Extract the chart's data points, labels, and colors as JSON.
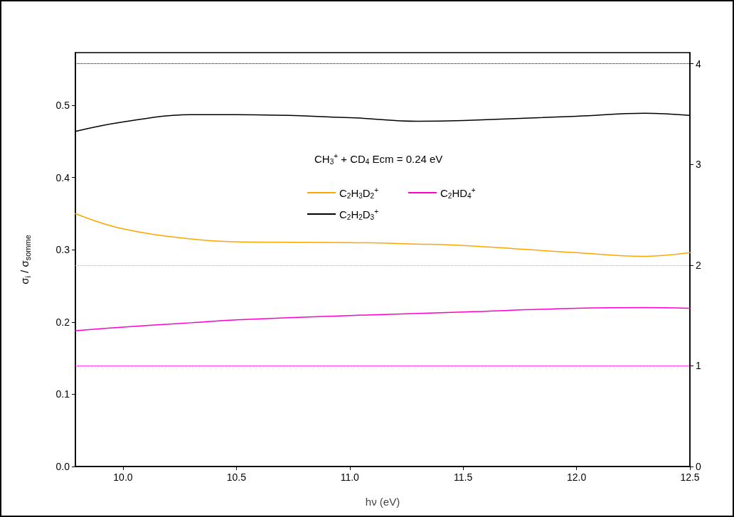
{
  "chart_data": {
    "type": "line",
    "xlabel": "hν (eV)",
    "ylabel": "σ$_{i}$ / σ$_{somme}$",
    "legend_title": "CH$_{3}$$^{+}$ + CD$_{4}$ Ecm = 0.24 eV",
    "x": [
      9.79,
      10.0,
      10.3,
      10.5,
      11.0,
      11.3,
      11.5,
      12.0,
      12.3,
      12.5
    ],
    "series": [
      {
        "name": "C$_{2}$H$_{3}$D$_{2}$$^{+}$",
        "color": "#ffa500",
        "values": [
          0.35,
          0.329,
          0.315,
          0.311,
          0.31,
          0.308,
          0.306,
          0.296,
          0.291,
          0.296
        ]
      },
      {
        "name": "C$_{2}$HD$_{4}$$^{+}$",
        "color": "#ff00cc",
        "values": [
          0.188,
          0.193,
          0.199,
          0.203,
          0.209,
          0.212,
          0.214,
          0.219,
          0.22,
          0.219
        ]
      },
      {
        "name": "C$_{2}$H$_{2}$D$_{3}$$^{+}$",
        "color": "#000000",
        "values": [
          0.464,
          0.477,
          0.487,
          0.487,
          0.483,
          0.478,
          0.479,
          0.485,
          0.489,
          0.486
        ]
      }
    ],
    "xlim": [
      9.79,
      12.5
    ],
    "xticks": [
      {
        "value": 10,
        "label": "10.0"
      },
      10.5,
      {
        "value": 11,
        "label": "11.0"
      },
      11.5,
      {
        "value": 12,
        "label": "12.0"
      },
      12.5
    ],
    "ylim": [
      0,
      0.573
    ],
    "yticks": [
      {
        "value": 0,
        "label": "0.0"
      },
      0.1,
      0.2,
      0.3,
      0.4,
      0.5
    ],
    "y2lim": [
      0,
      4.11
    ],
    "y2ticks": [
      0,
      1,
      2,
      3,
      4
    ],
    "ref_lines": [
      {
        "axis": "y2",
        "value": 1,
        "color": "#ff00cc",
        "line_style": "dotted"
      },
      {
        "axis": "y2",
        "value": 2,
        "color": "#ffa500",
        "line_style": "dotted"
      },
      {
        "axis": "y2",
        "value": 4,
        "color": "#000000",
        "line_style": "dotted"
      }
    ],
    "grid": false,
    "legend": "top",
    "marker": "none",
    "line_style": "solid"
  }
}
